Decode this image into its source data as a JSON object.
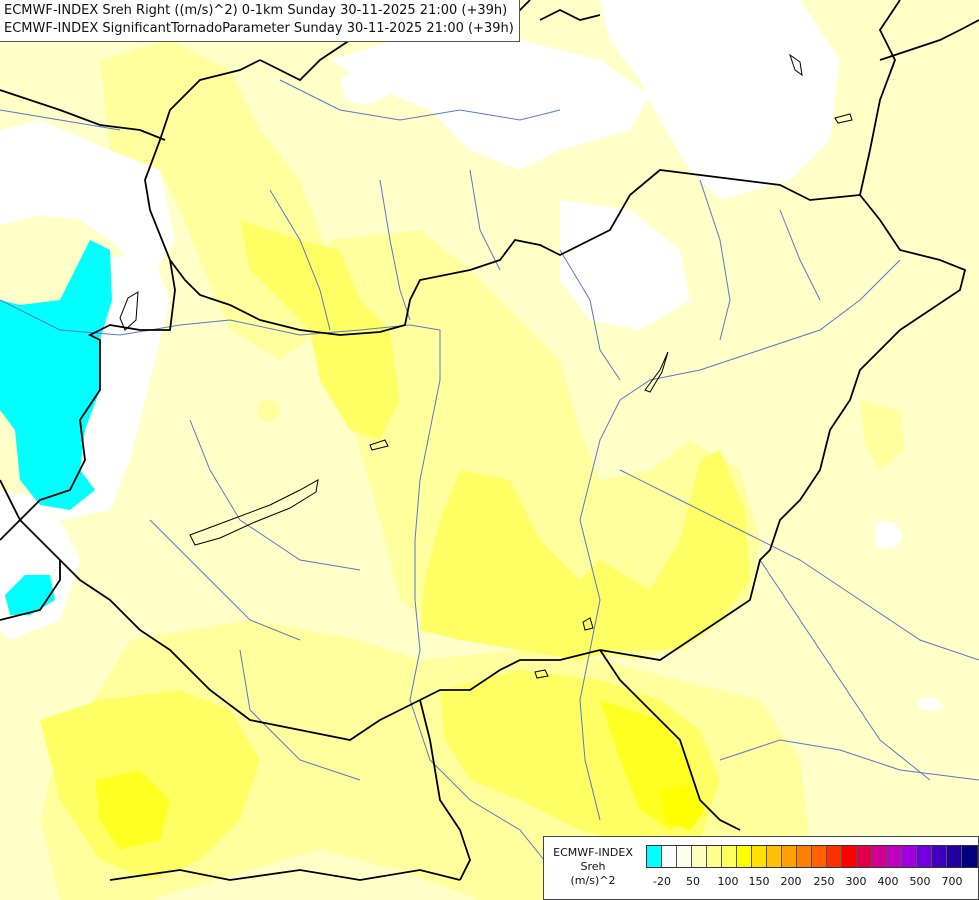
{
  "header": {
    "line1": "ECMWF-INDEX Sreh Right ((m/s)^2) 0-1km Sunday 30-11-2025 21:00 (+39h)",
    "line2": "ECMWF-INDEX SignificantTornadoParameter Sunday 30-11-2025 21:00 (+39h)"
  },
  "legend": {
    "line1": "ECMWF-INDEX",
    "line2": "Sreh",
    "line3": "(m/s)^2",
    "colors": [
      "#00ffff",
      "#ffffff",
      "#fffff0",
      "#ffffc0",
      "#ffff90",
      "#ffff60",
      "#ffff00",
      "#ffe000",
      "#ffc000",
      "#ffa000",
      "#ff8000",
      "#ff6000",
      "#ff3000",
      "#ff0000",
      "#e0004a",
      "#d00090",
      "#c000c0",
      "#a000e0",
      "#7000e0",
      "#4000c0",
      "#2000a0",
      "#000080"
    ],
    "ticks": [
      "-20",
      "50",
      "100",
      "150",
      "200",
      "250",
      "300",
      "400",
      "500",
      "700"
    ]
  },
  "map": {
    "field_colors": {
      "cyan": "#00ffff",
      "white": "#ffffff",
      "pale": "#ffffc8",
      "light": "#ffff9e",
      "medium": "#ffff64",
      "strong": "#ffff00"
    },
    "border_color": "#000000",
    "river_color": "#5a78c8"
  }
}
